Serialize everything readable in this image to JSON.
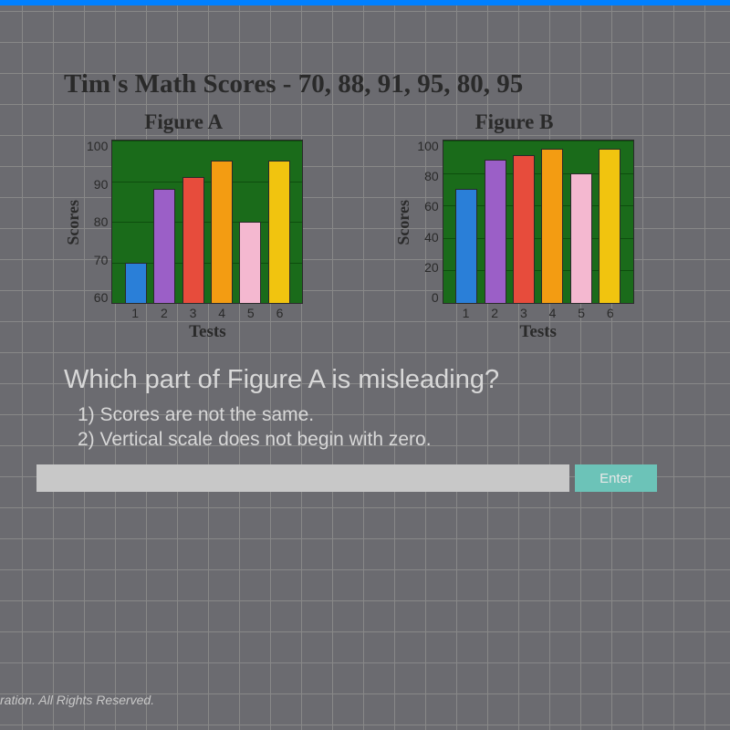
{
  "title": "Tim's Math Scores - 70, 88, 91, 95, 80, 95",
  "figureA": {
    "title": "Figure A",
    "ylabel": "Scores",
    "xlabel": "Tests",
    "ymin": 60,
    "ymax": 100,
    "yticks": [
      100,
      90,
      80,
      70,
      60
    ],
    "xticks": [
      1,
      2,
      3,
      4,
      5,
      6
    ],
    "values": [
      70,
      88,
      91,
      95,
      80,
      95
    ],
    "bar_colors": [
      "#2a7fd8",
      "#9b5fc7",
      "#e74c3c",
      "#f39c12",
      "#f4b8d0",
      "#f1c40f"
    ],
    "background_color": "#1a6b1a",
    "grid_color": "#0d4d0d"
  },
  "figureB": {
    "title": "Figure B",
    "ylabel": "Scores",
    "xlabel": "Tests",
    "ymin": 0,
    "ymax": 100,
    "yticks": [
      100,
      80,
      60,
      40,
      20,
      0
    ],
    "xticks": [
      1,
      2,
      3,
      4,
      5,
      6
    ],
    "values": [
      70,
      88,
      91,
      95,
      80,
      95
    ],
    "bar_colors": [
      "#2a7fd8",
      "#9b5fc7",
      "#e74c3c",
      "#f39c12",
      "#f4b8d0",
      "#f1c40f"
    ],
    "background_color": "#1a6b1a",
    "grid_color": "#0d4d0d"
  },
  "question": "Which part of Figure A is misleading?",
  "options": {
    "opt1": "1) Scores are not the same.",
    "opt2": "2) Vertical scale does not begin with zero."
  },
  "enter_label": "Enter",
  "footer": "ration.  All Rights Reserved."
}
